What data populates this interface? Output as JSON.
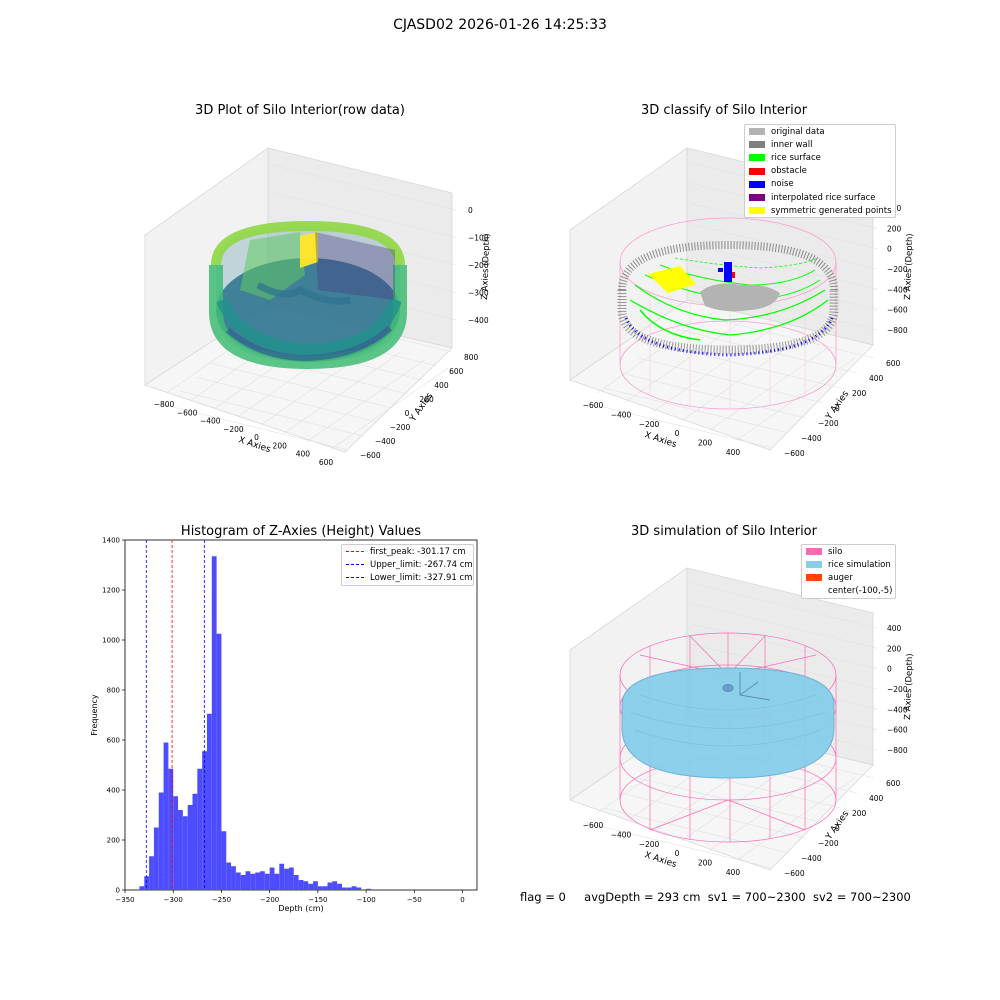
{
  "figure": {
    "suptitle": "CJASD02 2026-01-26 14:25:33"
  },
  "panels": {
    "raw": {
      "title": "3D Plot of Silo Interior(row data)",
      "xlabel": "X Axies",
      "ylabel": "Y Axies",
      "zlabel": "Z Axies (Depth)",
      "xticks": [
        "-800",
        "-600",
        "-400",
        "-200",
        "0",
        "200",
        "400",
        "600"
      ],
      "yticks": [
        "-600",
        "-400",
        "-200",
        "0",
        "200",
        "400",
        "600",
        "800"
      ],
      "zticks": [
        "0",
        "-100",
        "-200",
        "-300",
        "-400"
      ],
      "colormap": "viridis"
    },
    "classify": {
      "title": "3D classify of Silo Interior",
      "xlabel": "X Axies",
      "ylabel": "Y Axies",
      "zlabel": "Z Axies (Depth)",
      "xticks": [
        "-600",
        "-400",
        "-200",
        "0",
        "200",
        "400"
      ],
      "yticks": [
        "-600",
        "-400",
        "-200",
        "0",
        "200",
        "400",
        "600"
      ],
      "zticks": [
        "400",
        "200",
        "0",
        "-200",
        "-400",
        "-600",
        "-800"
      ],
      "legend": [
        {
          "label": "original data",
          "color": "#b3b3b3"
        },
        {
          "label": "inner wall",
          "color": "#808080"
        },
        {
          "label": "rice surface",
          "color": "#00ff00"
        },
        {
          "label": "obstacle",
          "color": "#ff0000"
        },
        {
          "label": "noise",
          "color": "#0000ff"
        },
        {
          "label": "interpolated rice surface",
          "color": "#800080"
        },
        {
          "label": "symmetric generated points",
          "color": "#ffff00"
        }
      ]
    },
    "simulation": {
      "title": "3D simulation of Silo Interior",
      "xlabel": "X Axies",
      "ylabel": "Y Axies",
      "zlabel": "Z Axies (Depth)",
      "xticks": [
        "-600",
        "-400",
        "-200",
        "0",
        "200",
        "400"
      ],
      "yticks": [
        "-600",
        "-400",
        "-200",
        "0",
        "200",
        "400",
        "600"
      ],
      "zticks": [
        "400",
        "200",
        "0",
        "-200",
        "-400",
        "-600",
        "-800"
      ],
      "legend": [
        {
          "label": "silo",
          "color": "#ff69b4"
        },
        {
          "label": "rice simulation",
          "color": "#87ceeb"
        },
        {
          "label": "auger",
          "color": "#ff4500"
        },
        {
          "label": "center(-100,-5)",
          "color": ""
        }
      ]
    }
  },
  "status": {
    "flag": "flag = 0",
    "avg_depth": "avgDepth = 293 cm",
    "sv1": "sv1 = 700~2300",
    "sv2": "sv2 = 700~2300"
  },
  "chart_data": [
    {
      "type": "histogram",
      "title": "Histogram of Z-Axies (Height) Values",
      "xlabel": "Depth (cm)",
      "ylabel": "Frequency",
      "xlim": [
        -350,
        15
      ],
      "ylim": [
        0,
        1400
      ],
      "xticks": [
        -350,
        -300,
        -250,
        -200,
        -150,
        -100,
        -50,
        0
      ],
      "yticks": [
        0,
        200,
        400,
        600,
        800,
        1000,
        1200,
        1400
      ],
      "bar_color": "#4d4dff",
      "bin_start": -335,
      "bin_width": 5,
      "values": [
        15,
        55,
        135,
        250,
        390,
        590,
        485,
        375,
        320,
        295,
        340,
        385,
        485,
        555,
        705,
        1335,
        1025,
        235,
        110,
        95,
        70,
        60,
        75,
        65,
        70,
        75,
        65,
        90,
        65,
        105,
        85,
        90,
        60,
        40,
        35,
        25,
        35,
        15,
        15,
        30,
        35,
        25,
        10,
        10,
        15,
        10,
        0,
        5
      ],
      "vlines": [
        {
          "label": "first_peak: -301.17 cm",
          "x": -301.17,
          "color": "#ff0000"
        },
        {
          "label": "Upper_limit: -267.74 cm",
          "x": -267.74,
          "color": "#0000ff"
        },
        {
          "label": "Lower_limit: -327.91 cm",
          "x": -327.91,
          "color": "#0000ff"
        }
      ]
    }
  ]
}
